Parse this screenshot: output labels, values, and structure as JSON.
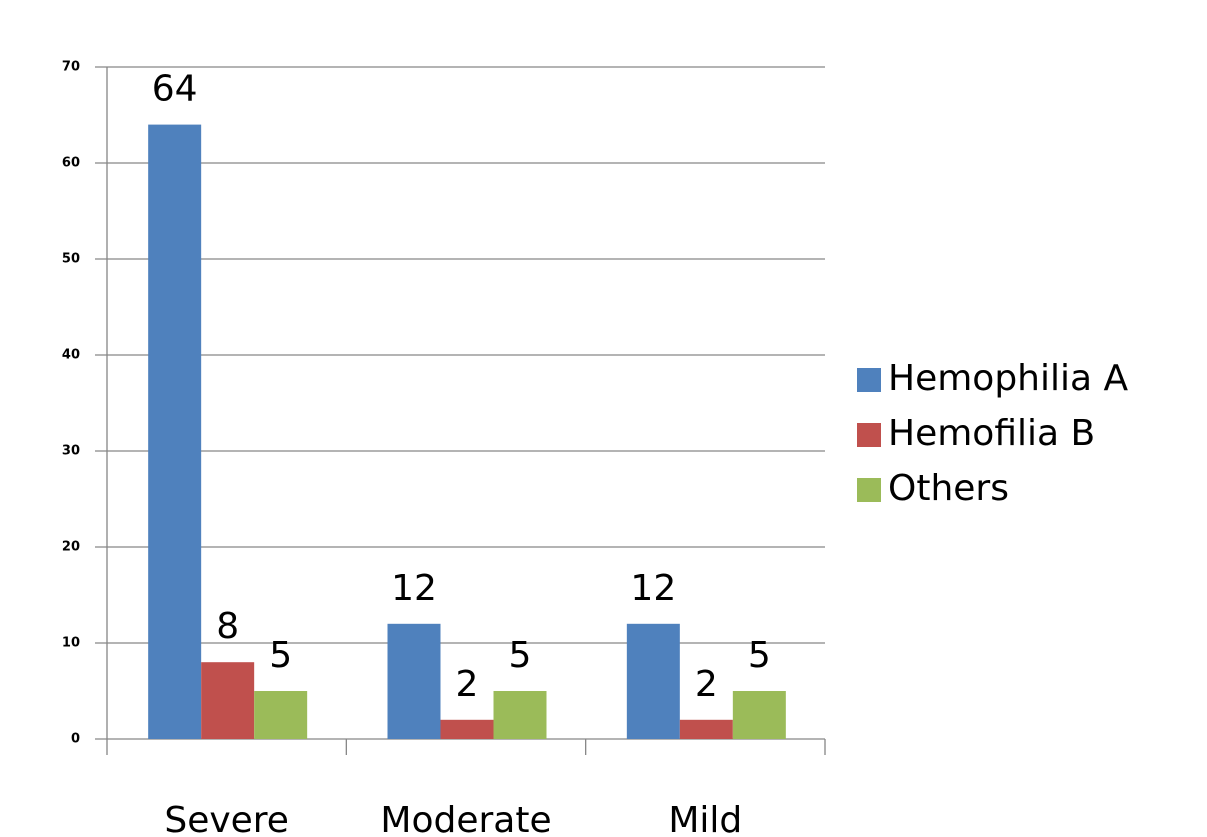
{
  "chart_data": {
    "type": "bar",
    "categories": [
      "Severe",
      "Moderate",
      "Mild"
    ],
    "series": [
      {
        "name": "Hemophilia A",
        "color": "#4f81bd",
        "values": [
          64,
          12,
          12
        ]
      },
      {
        "name": "Hemofilia B",
        "color": "#c0504d",
        "values": [
          8,
          2,
          2
        ]
      },
      {
        "name": "Others",
        "color": "#9bbb59",
        "values": [
          5,
          5,
          5
        ]
      }
    ],
    "ylim": [
      0,
      70
    ],
    "yticks": [
      0,
      10,
      20,
      30,
      40,
      50,
      60,
      70
    ],
    "grid": true,
    "legend": "right"
  }
}
